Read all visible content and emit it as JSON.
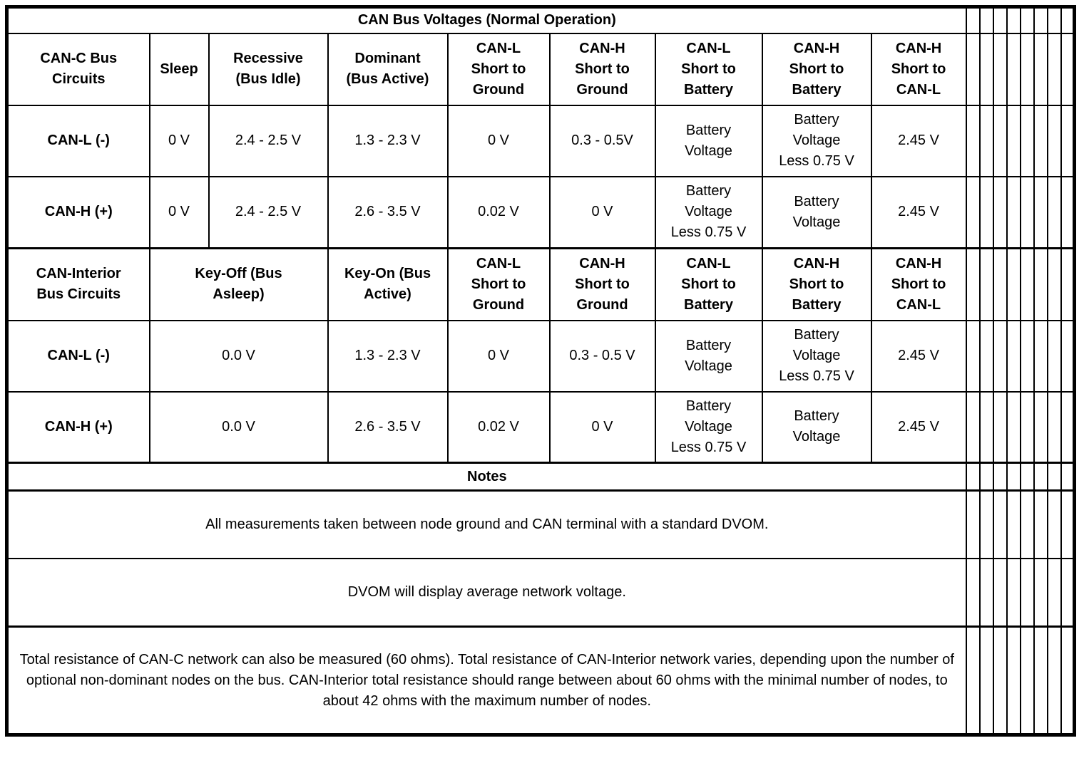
{
  "title": "CAN Bus Voltages (Normal Operation)",
  "canc": {
    "headers": [
      "CAN-C Bus\nCircuits",
      "Sleep",
      "Recessive\n(Bus Idle)",
      "Dominant\n(Bus Active)",
      "CAN-L\nShort to\nGround",
      "CAN-H\nShort to\nGround",
      "CAN-L\nShort to\nBattery",
      "CAN-H\nShort to\nBattery",
      "CAN-H\nShort to\nCAN-L"
    ],
    "rows": [
      {
        "label": "CAN-L (-)",
        "values": [
          "0 V",
          "2.4 - 2.5 V",
          "1.3 - 2.3 V",
          "0 V",
          "0.3 - 0.5V",
          "Battery\nVoltage",
          "Battery\nVoltage\nLess 0.75 V",
          "2.45 V"
        ]
      },
      {
        "label": "CAN-H (+)",
        "values": [
          "0 V",
          "2.4 - 2.5 V",
          "2.6 - 3.5 V",
          "0.02 V",
          "0 V",
          "Battery\nVoltage\nLess 0.75 V",
          "Battery\nVoltage",
          "2.45 V"
        ]
      }
    ]
  },
  "interior": {
    "headers": [
      "CAN-Interior\nBus Circuits",
      "Key-Off (Bus\nAsleep)",
      "Key-On (Bus\nActive)",
      "CAN-L\nShort to\nGround",
      "CAN-H\nShort to\nGround",
      "CAN-L\nShort to\nBattery",
      "CAN-H\nShort to\nBattery",
      "CAN-H\nShort to\nCAN-L"
    ],
    "rows": [
      {
        "label": "CAN-L (-)",
        "values": [
          "0.0 V",
          "1.3 - 2.3 V",
          "0 V",
          "0.3 - 0.5 V",
          "Battery\nVoltage",
          "Battery\nVoltage\nLess 0.75 V",
          "2.45 V"
        ]
      },
      {
        "label": "CAN-H (+)",
        "values": [
          "0.0 V",
          "2.6 - 3.5 V",
          "0.02 V",
          "0 V",
          "Battery\nVoltage\nLess 0.75 V",
          "Battery\nVoltage",
          "2.45 V"
        ]
      }
    ]
  },
  "notes": {
    "header": "Notes",
    "items": [
      "All measurements taken between node ground and CAN terminal with a standard DVOM.",
      "DVOM will display average network voltage.",
      "Total resistance of CAN-C network can also be measured (60 ohms). Total resistance of CAN-Interior network varies, depending upon the number of optional non-dominant nodes on the bus. CAN-Interior total resistance should range between about 60 ohms with the minimal number of nodes, to about 42 ohms with the maximum number of nodes."
    ]
  }
}
